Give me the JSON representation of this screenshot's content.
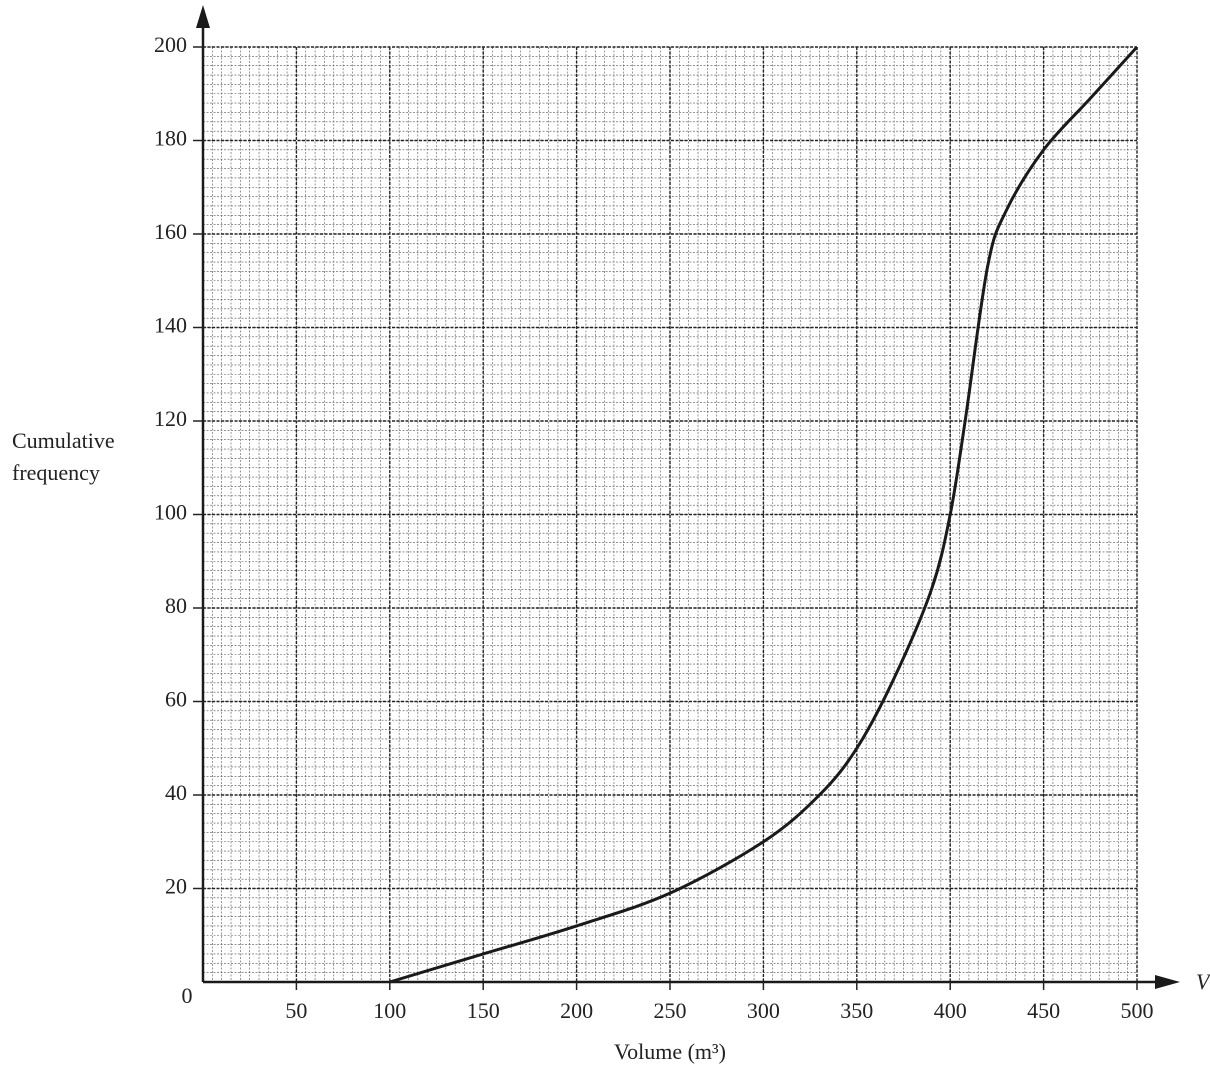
{
  "chart_data": {
    "type": "line",
    "ylabel": [
      "Cumulative",
      "frequency"
    ],
    "xlabel": "Volume (m³)",
    "x_axis_symbol": "V",
    "origin_label": "0",
    "series": [
      {
        "color": "#1a1a1a",
        "x": [
          100,
          150,
          200,
          250,
          300,
          330,
          350,
          370,
          390,
          400,
          408,
          420,
          430,
          450,
          475,
          500
        ],
        "values": [
          0,
          6,
          12,
          19,
          30,
          40,
          50,
          65,
          84,
          100,
          120,
          153,
          165,
          178,
          189,
          200
        ]
      }
    ],
    "xlim": [
      0,
      500
    ],
    "ylim": [
      0,
      200
    ],
    "xticks": [
      50,
      100,
      150,
      200,
      250,
      300,
      350,
      400,
      450,
      500
    ],
    "yticks": [
      20,
      40,
      60,
      80,
      100,
      120,
      140,
      160,
      180,
      200
    ],
    "grid": true,
    "minor_divisions": 10
  }
}
